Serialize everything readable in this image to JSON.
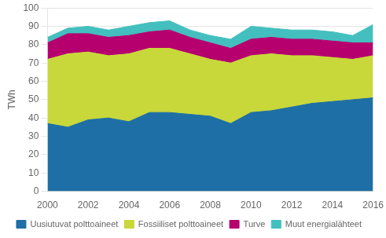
{
  "chart_data": {
    "type": "area",
    "stacked": true,
    "x": [
      2000,
      2001,
      2002,
      2003,
      2004,
      2005,
      2006,
      2007,
      2008,
      2009,
      2010,
      2011,
      2012,
      2013,
      2014,
      2015,
      2016
    ],
    "series": [
      {
        "name": "Uusiutuvat polttoaineet",
        "color": "#1e6fa5",
        "values": [
          37,
          35,
          39,
          40,
          38,
          43,
          43,
          42,
          41,
          37,
          43,
          44,
          46,
          48,
          49,
          50,
          51
        ]
      },
      {
        "name": "Fossiiliset polttoaineet",
        "color": "#c8d83a",
        "values": [
          35,
          40,
          37,
          34,
          37,
          35,
          35,
          33,
          31,
          33,
          31,
          31,
          28,
          26,
          24,
          22,
          23
        ]
      },
      {
        "name": "Turve",
        "color": "#b5006e",
        "values": [
          9,
          11,
          10,
          10,
          10,
          9,
          10,
          9,
          9,
          8,
          9,
          9,
          9,
          9,
          9,
          9,
          7
        ]
      },
      {
        "name": "Muut energialähteet",
        "color": "#44bfbf",
        "values": [
          3,
          3,
          4,
          4,
          5,
          5,
          5,
          4,
          4,
          5,
          7,
          5,
          5,
          5,
          5,
          4,
          10
        ]
      }
    ],
    "y_label": "TWh",
    "xlim": [
      2000,
      2016
    ],
    "xticks": [
      2000,
      2002,
      2004,
      2006,
      2008,
      2010,
      2012,
      2014,
      2016
    ],
    "ylim": [
      0,
      100
    ],
    "yticks": [
      0,
      10,
      20,
      30,
      40,
      50,
      60,
      70,
      80,
      90,
      100
    ],
    "grid": true,
    "legend": "bottom"
  }
}
